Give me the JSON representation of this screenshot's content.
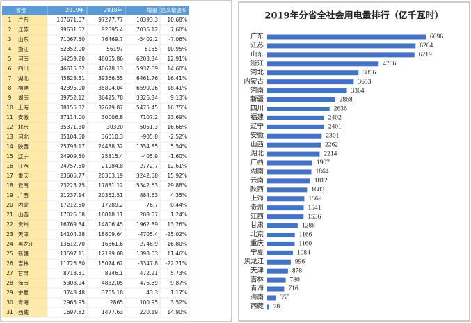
{
  "table": {
    "header": [
      "省份",
      "2019年",
      "2018年",
      "增量",
      "名义增速%"
    ],
    "rows": [
      [
        "1",
        "广东",
        "107671.07",
        "97277.77",
        "10393.3",
        "10.68%"
      ],
      [
        "2",
        "江苏",
        "99631.52",
        "92595.4",
        "7036.12",
        "7.60%"
      ],
      [
        "3",
        "山东",
        "71067.50",
        "76469.7",
        "-5402.2",
        "-7.06%"
      ],
      [
        "4",
        "浙江",
        "62352.00",
        "56197",
        "6155",
        "10.95%"
      ],
      [
        "5",
        "河南",
        "54259.20",
        "48055.86",
        "6203.34",
        "12.91%"
      ],
      [
        "6",
        "四川",
        "46615.82",
        "40678.13",
        "5937.69",
        "14.60%"
      ],
      [
        "7",
        "湖北",
        "45828.31",
        "39366.55",
        "6461.76",
        "16.41%"
      ],
      [
        "8",
        "福建",
        "42395.00",
        "35804.04",
        "6590.96",
        "18.41%"
      ],
      [
        "9",
        "湖南",
        "39752.12",
        "36425.78",
        "3326.34",
        "9.13%"
      ],
      [
        "10",
        "上海",
        "38155.32",
        "32679.87",
        "5475.45",
        "16.75%"
      ],
      [
        "11",
        "安徽",
        "37114.00",
        "30006.8",
        "7107.2",
        "23.69%"
      ],
      [
        "12",
        "北京",
        "35371.30",
        "30320",
        "5051.3",
        "16.66%"
      ],
      [
        "13",
        "河北",
        "35104.50",
        "36010.3",
        "-905.8",
        "-2.52%"
      ],
      [
        "14",
        "陕西",
        "25793.17",
        "24438.32",
        "1354.85",
        "5.54%"
      ],
      [
        "15",
        "辽宁",
        "24909.50",
        "25315.4",
        "-405.9",
        "-1.60%"
      ],
      [
        "16",
        "江西",
        "24757.50",
        "21984.8",
        "2772.7",
        "12.61%"
      ],
      [
        "17",
        "重庆",
        "23605.77",
        "20363.19",
        "3242.58",
        "15.92%"
      ],
      [
        "18",
        "云南",
        "23223.75",
        "17881.12",
        "5342.63",
        "29.88%"
      ],
      [
        "19",
        "广西",
        "21237.14",
        "20352.51",
        "884.63",
        "4.35%"
      ],
      [
        "20",
        "内蒙",
        "17212.50",
        "17289.2",
        "-76.7",
        "-0.44%"
      ],
      [
        "21",
        "山西",
        "17026.68",
        "16818.11",
        "208.57",
        "1.24%"
      ],
      [
        "22",
        "贵州",
        "16769.34",
        "14806.45",
        "1962.89",
        "13.26%"
      ],
      [
        "23",
        "天津",
        "14104.28",
        "18809.64",
        "-4705.4",
        "-25.02%"
      ],
      [
        "24",
        "黑龙江",
        "13612.70",
        "16361.6",
        "-2748.9",
        "-16.80%"
      ],
      [
        "25",
        "新疆",
        "13597.11",
        "12199.08",
        "1398.03",
        "11.46%"
      ],
      [
        "26",
        "吉林",
        "11726.80",
        "15074.62",
        "-3347.8",
        "-22.21%"
      ],
      [
        "27",
        "甘肃",
        "8718.31",
        "8246.1",
        "472.21",
        "5.73%"
      ],
      [
        "28",
        "海南",
        "5308.94",
        "4832.05",
        "476.89",
        "9.87%"
      ],
      [
        "29",
        "宁夏",
        "3748.48",
        "3705.18",
        "43.3",
        "1.17%"
      ],
      [
        "30",
        "青海",
        "2965.95",
        "2865",
        "100.95",
        "3.52%"
      ],
      [
        "31",
        "西藏",
        "1697.82",
        "1477.63",
        "220.19",
        "14.90%"
      ]
    ]
  },
  "chart_data": {
    "type": "bar",
    "orientation": "horizontal",
    "title": "2019年分省全社会用电量排行（亿千瓦时）",
    "categories": [
      "广东",
      "江苏",
      "山东",
      "浙江",
      "河北",
      "内蒙古",
      "河南",
      "新疆",
      "四川",
      "福建",
      "辽宁",
      "安徽",
      "山西",
      "湖北",
      "广西",
      "湖南",
      "云南",
      "陕西",
      "上海",
      "贵州",
      "江西",
      "甘肃",
      "北京",
      "重庆",
      "宁夏",
      "黑龙江",
      "天津",
      "吉林",
      "青海",
      "海南",
      "西藏"
    ],
    "values": [
      6696,
      6264,
      6219,
      4706,
      3856,
      3653,
      3364,
      2868,
      2636,
      2402,
      2401,
      2301,
      2262,
      2214,
      1907,
      1864,
      1812,
      1683,
      1569,
      1541,
      1536,
      1288,
      1166,
      1160,
      1084,
      996,
      878,
      780,
      716,
      355,
      78
    ],
    "color": "#4472c4"
  }
}
